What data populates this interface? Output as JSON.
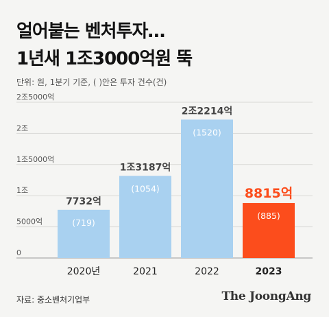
{
  "title_lines": [
    "얼어붙는 벤처투자…",
    "1년새 1조3000억원 뚝"
  ],
  "unit_note": "단위: 원, 1분기 기준, ( )안은 투자 건수(건)",
  "source": "자료: 중소벤처기업부",
  "brand": "The JoongAng",
  "colors": {
    "bar": "#a9d1f0",
    "highlight": "#fc4d1c",
    "label": "#444444",
    "grid": "#d9d9d6"
  },
  "chart_data": {
    "type": "bar",
    "categories": [
      "2020년",
      "2021",
      "2022",
      "2023"
    ],
    "values": [
      7732,
      13187,
      22214,
      8815
    ],
    "value_labels": [
      "7732억",
      "1조3187억",
      "2조2214억",
      "8815억"
    ],
    "counts": [
      "(719)",
      "(1054)",
      "(1520)",
      "(885)"
    ],
    "highlight_index": 3,
    "yticks": [
      0,
      5000,
      10000,
      15000,
      20000,
      25000
    ],
    "ytick_labels": [
      "0",
      "5000억",
      "1조",
      "1조5000억",
      "2조",
      "2조5000억"
    ],
    "ylim": [
      0,
      25000
    ],
    "grid": true
  }
}
